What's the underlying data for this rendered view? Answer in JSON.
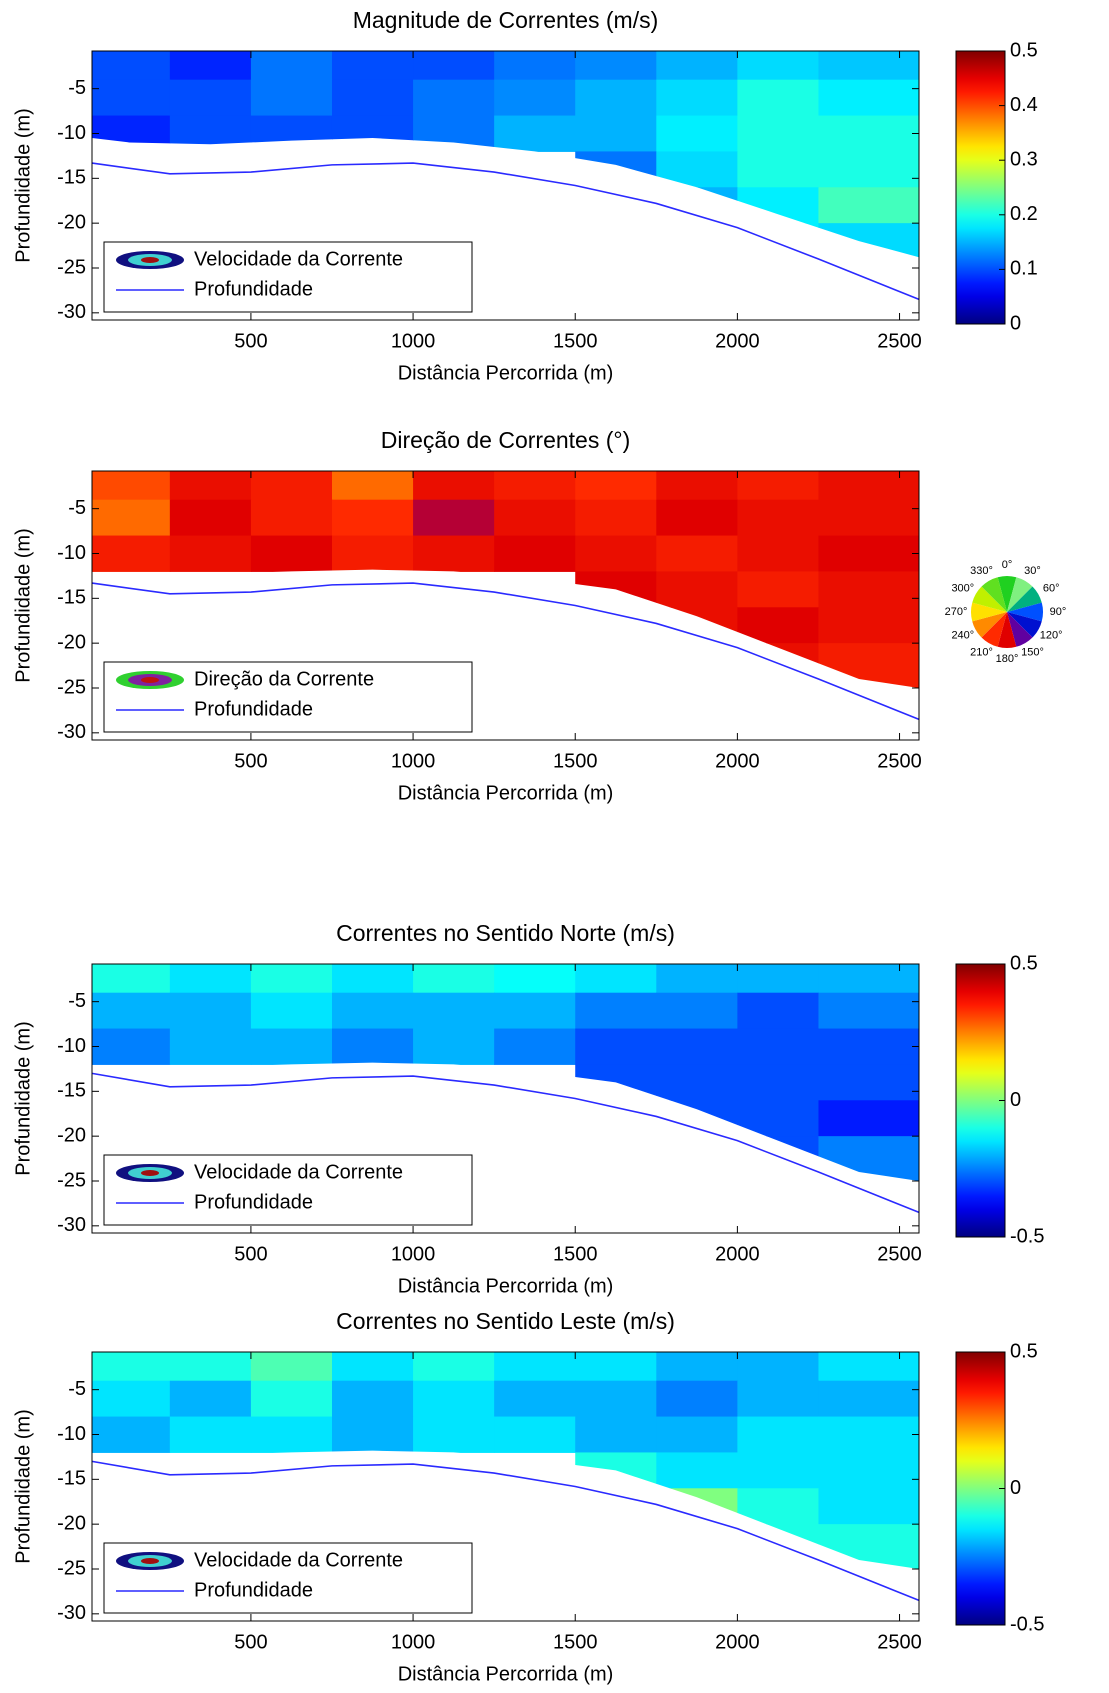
{
  "chart_data": [
    {
      "type": "contour",
      "title": "Magnitude de Correntes (m/s)",
      "xlabel": "Distância Percorrida (m)",
      "ylabel": "Profundidade (m)",
      "xlim": [
        10,
        2560
      ],
      "ylim": [
        -30.8,
        -0.8
      ],
      "xticks": [
        500,
        1000,
        1500,
        2000,
        2500
      ],
      "yticks": [
        -5,
        -10,
        -15,
        -20,
        -25,
        -30
      ],
      "colormap": "jet",
      "clim": [
        0,
        0.5
      ],
      "cticks": [
        0,
        0.1,
        0.2,
        0.3,
        0.4,
        0.5
      ],
      "grid_x": [
        125,
        375,
        625,
        875,
        1125,
        1375,
        1625,
        1875,
        2125,
        2375
      ],
      "grid_depth": [
        -2,
        -6,
        -10,
        -14,
        -18,
        -22
      ],
      "values": [
        [
          0.1,
          0.08,
          0.12,
          0.1,
          0.1,
          0.12,
          0.13,
          0.15,
          0.17,
          0.16
        ],
        [
          0.1,
          0.1,
          0.12,
          0.1,
          0.12,
          0.13,
          0.15,
          0.17,
          0.2,
          0.18
        ],
        [
          0.08,
          0.1,
          0.1,
          0.1,
          0.12,
          0.15,
          0.15,
          0.18,
          0.2,
          0.2
        ],
        [
          null,
          null,
          null,
          null,
          null,
          null,
          0.12,
          0.17,
          0.2,
          0.2
        ],
        [
          null,
          null,
          null,
          null,
          null,
          null,
          null,
          0.15,
          0.18,
          0.22
        ],
        [
          null,
          null,
          null,
          null,
          null,
          null,
          null,
          null,
          0.18,
          0.17
        ]
      ],
      "data_bottom": {
        "x": [
          10,
          125,
          375,
          625,
          875,
          1125,
          1375,
          1625,
          1875,
          2125,
          2375,
          2560
        ],
        "y": [
          -10.5,
          -11,
          -11.2,
          -10.8,
          -10.5,
          -11,
          -12,
          -13.5,
          -16,
          -19,
          -22,
          -23.8
        ]
      },
      "depth_line": {
        "color": "#2a2aff",
        "x": [
          10,
          250,
          500,
          750,
          1000,
          1250,
          1500,
          1750,
          2000,
          2250,
          2560
        ],
        "y": [
          -13.3,
          -14.5,
          -14.3,
          -13.5,
          -13.3,
          -14.3,
          -15.8,
          -17.8,
          -20.5,
          -24,
          -28.5
        ]
      },
      "legend": [
        "Velocidade da Corrente",
        "Profundidade"
      ],
      "legend_icon_colors": [
        "#101080",
        "#40d0d0",
        "#a01010"
      ]
    },
    {
      "type": "contour",
      "title": "Direção de Correntes (°)",
      "xlabel": "Distância Percorrida (m)",
      "ylabel": "Profundidade (m)",
      "xlim": [
        10,
        2560
      ],
      "ylim": [
        -30.8,
        -0.8
      ],
      "xticks": [
        500,
        1000,
        1500,
        2000,
        2500
      ],
      "yticks": [
        -5,
        -10,
        -15,
        -20,
        -25,
        -30
      ],
      "colormap": "wheel",
      "wheel_ticks": [
        {
          "value": 0,
          "label": "0°"
        },
        {
          "value": 30,
          "label": "30°"
        },
        {
          "value": 60,
          "label": "60°"
        },
        {
          "value": 90,
          "label": "90°"
        },
        {
          "value": 120,
          "label": "120°"
        },
        {
          "value": 150,
          "label": "150°"
        },
        {
          "value": 180,
          "label": "180°"
        },
        {
          "value": 210,
          "label": "210°"
        },
        {
          "value": 240,
          "label": "240°"
        },
        {
          "value": 270,
          "label": "270°"
        },
        {
          "value": 300,
          "label": "300°"
        },
        {
          "value": 330,
          "label": "330°"
        }
      ],
      "wheel_colors": [
        "#20d020",
        "#80f080",
        "#00b080",
        "#0050ff",
        "#0010d0",
        "#6000a0",
        "#e00000",
        "#ff2a00",
        "#ff8a00",
        "#ffe000",
        "#c0f000",
        "#60e020"
      ],
      "grid_x": [
        125,
        375,
        625,
        875,
        1125,
        1375,
        1625,
        1875,
        2125,
        2375
      ],
      "grid_depth": [
        -2,
        -6,
        -10,
        -14,
        -18,
        -22
      ],
      "values": [
        [
          220,
          190,
          200,
          230,
          190,
          200,
          210,
          190,
          200,
          190
        ],
        [
          230,
          180,
          200,
          210,
          170,
          190,
          200,
          180,
          190,
          190
        ],
        [
          200,
          190,
          180,
          200,
          190,
          180,
          190,
          200,
          190,
          180
        ],
        [
          null,
          null,
          null,
          null,
          null,
          null,
          180,
          190,
          200,
          190
        ],
        [
          null,
          null,
          null,
          null,
          null,
          null,
          null,
          190,
          180,
          190
        ],
        [
          null,
          null,
          null,
          null,
          null,
          null,
          null,
          null,
          190,
          200
        ]
      ],
      "data_bottom": {
        "x": [
          10,
          125,
          375,
          625,
          875,
          1125,
          1375,
          1625,
          1875,
          2125,
          2375,
          2560
        ],
        "y": [
          -12.5,
          -12.5,
          -12.3,
          -12,
          -11.8,
          -12,
          -12.8,
          -14,
          -17,
          -20.5,
          -24,
          -25
        ]
      },
      "depth_line": {
        "color": "#2a2aff",
        "x": [
          10,
          250,
          500,
          750,
          1000,
          1250,
          1500,
          1750,
          2000,
          2250,
          2560
        ],
        "y": [
          -13.3,
          -14.5,
          -14.3,
          -13.5,
          -13.3,
          -14.3,
          -15.8,
          -17.8,
          -20.5,
          -24,
          -28.5
        ]
      },
      "legend": [
        "Direção da Corrente",
        "Profundidade"
      ],
      "legend_icon_colors": [
        "#30d030",
        "#8020a0",
        "#c01010"
      ]
    },
    {
      "type": "contour",
      "title": "Correntes no Sentido Norte (m/s)",
      "xlabel": "Distância Percorrida (m)",
      "ylabel": "Profundidade (m)",
      "xlim": [
        10,
        2560
      ],
      "ylim": [
        -30.8,
        -0.8
      ],
      "xticks": [
        500,
        1000,
        1500,
        2000,
        2500
      ],
      "yticks": [
        -5,
        -10,
        -15,
        -20,
        -25,
        -30
      ],
      "colormap": "jet",
      "clim": [
        -0.5,
        0.5
      ],
      "cticks": [
        -0.5,
        0,
        0.5
      ],
      "grid_x": [
        125,
        375,
        625,
        875,
        1125,
        1375,
        1625,
        1875,
        2125,
        2375
      ],
      "grid_depth": [
        -2,
        -6,
        -10,
        -14,
        -18,
        -22
      ],
      "values": [
        [
          -0.1,
          -0.15,
          -0.1,
          -0.15,
          -0.1,
          -0.12,
          -0.15,
          -0.2,
          -0.2,
          -0.2
        ],
        [
          -0.2,
          -0.2,
          -0.15,
          -0.2,
          -0.2,
          -0.2,
          -0.25,
          -0.25,
          -0.3,
          -0.25
        ],
        [
          -0.25,
          -0.2,
          -0.2,
          -0.25,
          -0.2,
          -0.25,
          -0.3,
          -0.3,
          -0.3,
          -0.3
        ],
        [
          null,
          null,
          null,
          null,
          null,
          null,
          -0.3,
          -0.3,
          -0.3,
          -0.3
        ],
        [
          null,
          null,
          null,
          null,
          null,
          null,
          null,
          -0.3,
          -0.3,
          -0.35
        ],
        [
          null,
          null,
          null,
          null,
          null,
          null,
          null,
          null,
          -0.3,
          -0.25
        ]
      ],
      "data_bottom": {
        "x": [
          10,
          125,
          375,
          625,
          875,
          1125,
          1375,
          1625,
          1875,
          2125,
          2375,
          2560
        ],
        "y": [
          -12.3,
          -12.5,
          -12.3,
          -12,
          -11.8,
          -12,
          -12.8,
          -14,
          -17,
          -20.5,
          -24,
          -25
        ]
      },
      "depth_line": {
        "color": "#2a2aff",
        "x": [
          10,
          250,
          500,
          750,
          1000,
          1250,
          1500,
          1750,
          2000,
          2250,
          2560
        ],
        "y": [
          -13,
          -14.5,
          -14.3,
          -13.5,
          -13.3,
          -14.3,
          -15.8,
          -17.8,
          -20.5,
          -24,
          -28.5
        ]
      },
      "legend": [
        "Velocidade da Corrente",
        "Profundidade"
      ],
      "legend_icon_colors": [
        "#101080",
        "#40d0d0",
        "#a01010"
      ]
    },
    {
      "type": "contour",
      "title": "Correntes no Sentido Leste (m/s)",
      "xlabel": "Distância Percorrida (m)",
      "ylabel": "Profundidade (m)",
      "xlim": [
        10,
        2560
      ],
      "ylim": [
        -30.8,
        -0.8
      ],
      "xticks": [
        500,
        1000,
        1500,
        2000,
        2500
      ],
      "yticks": [
        -5,
        -10,
        -15,
        -20,
        -25,
        -30
      ],
      "colormap": "jet",
      "clim": [
        -0.5,
        0.5
      ],
      "cticks": [
        -0.5,
        0,
        0.5
      ],
      "grid_x": [
        125,
        375,
        625,
        875,
        1125,
        1375,
        1625,
        1875,
        2125,
        2375
      ],
      "grid_depth": [
        -2,
        -6,
        -10,
        -14,
        -18,
        -22
      ],
      "values": [
        [
          -0.1,
          -0.1,
          -0.05,
          -0.15,
          -0.1,
          -0.15,
          -0.15,
          -0.2,
          -0.2,
          -0.15
        ],
        [
          -0.15,
          -0.2,
          -0.1,
          -0.2,
          -0.15,
          -0.2,
          -0.2,
          -0.25,
          -0.2,
          -0.2
        ],
        [
          -0.2,
          -0.15,
          -0.15,
          -0.2,
          -0.15,
          -0.15,
          -0.2,
          -0.2,
          -0.15,
          -0.15
        ],
        [
          null,
          null,
          null,
          null,
          null,
          null,
          -0.1,
          -0.15,
          -0.15,
          -0.15
        ],
        [
          null,
          null,
          null,
          null,
          null,
          null,
          null,
          0,
          -0.1,
          -0.15
        ],
        [
          null,
          null,
          null,
          null,
          null,
          null,
          null,
          null,
          -0.1,
          -0.1
        ]
      ],
      "data_bottom": {
        "x": [
          10,
          125,
          375,
          625,
          875,
          1125,
          1375,
          1625,
          1875,
          2125,
          2375,
          2560
        ],
        "y": [
          -12.3,
          -12.5,
          -12.3,
          -12,
          -11.8,
          -12,
          -12.8,
          -14,
          -17,
          -20.5,
          -24,
          -25
        ]
      },
      "depth_line": {
        "color": "#2a2aff",
        "x": [
          10,
          250,
          500,
          750,
          1000,
          1250,
          1500,
          1750,
          2000,
          2250,
          2560
        ],
        "y": [
          -13,
          -14.5,
          -14.3,
          -13.5,
          -13.3,
          -14.3,
          -15.8,
          -17.8,
          -20.5,
          -24,
          -28.5
        ]
      },
      "legend": [
        "Velocidade da Corrente",
        "Profundidade"
      ],
      "legend_icon_colors": [
        "#101080",
        "#40d0d0",
        "#a01010"
      ]
    }
  ]
}
